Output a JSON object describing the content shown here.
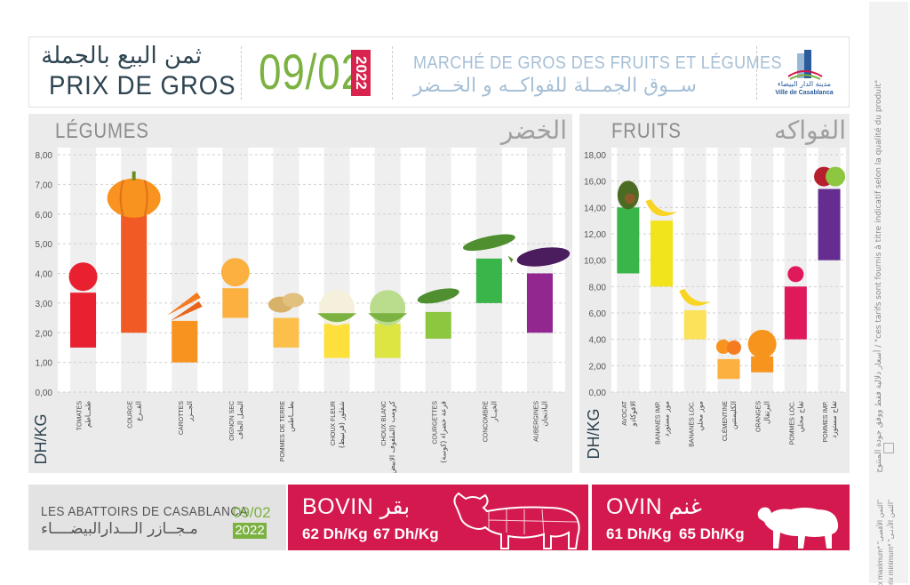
{
  "header": {
    "prix_ar": "ثمن البيع بالجملة",
    "prix_fr": "PRIX DE GROS",
    "date": "09/02",
    "year": "2022",
    "market_fr": "MARCHÉ DE GROS DES FRUITS ET LÉGUMES",
    "market_ar": "ســوق الجمــلة للفواكــه و الخــضر",
    "logo_ar": "مدينة الدار البيضاء",
    "logo_fr": "Ville de Casablanca"
  },
  "colors": {
    "accent_red": "#d4194e",
    "accent_green": "#7bb241",
    "title_blue": "#2e4451"
  },
  "chart_data": [
    {
      "type": "bar",
      "subtype": "floating-range",
      "title_fr": "LÉGUMES",
      "title_ar": "الخضر",
      "ylabel": "DH/KG",
      "ylim": [
        0,
        8
      ],
      "yticks": [
        "0,00",
        "1,00",
        "2,00",
        "3,00",
        "4,00",
        "5,00",
        "6,00",
        "7,00",
        "8,00"
      ],
      "categories": [
        {
          "fr": "TOMATES",
          "ar": "طمــاطم",
          "min": 1.5,
          "max": 3.35,
          "color": "#e8202f",
          "icon": "tomato-icon"
        },
        {
          "fr": "COURGE",
          "ar": "القــرع",
          "min": 2.0,
          "max": 6.0,
          "color": "#f15a24",
          "icon": "pumpkin-icon"
        },
        {
          "fr": "CAROTTES",
          "ar": "الجــزر",
          "min": 1.0,
          "max": 2.4,
          "color": "#f7931e",
          "icon": "carrot-icon"
        },
        {
          "fr": "OIGNON SEC",
          "ar": "البصل الجاف",
          "min": 2.5,
          "max": 3.5,
          "color": "#fbb040",
          "icon": "onion-icon"
        },
        {
          "fr": "POMMES DE TERRE",
          "ar": "بطـــاطس",
          "min": 1.5,
          "max": 2.5,
          "color": "#fcc04a",
          "icon": "potato-icon"
        },
        {
          "fr": "CHOUX FLEUR",
          "ar": "شفلور (قرنبيط)",
          "min": 1.15,
          "max": 2.3,
          "color": "#fde03c",
          "icon": "cauliflower-icon"
        },
        {
          "fr": "CHOUX BLANC",
          "ar": "كرومب (الملفوف الابيض)",
          "min": 1.15,
          "max": 2.3,
          "color": "#dde542",
          "icon": "cabbage-icon"
        },
        {
          "fr": "COURGETTES",
          "ar": "قرعة خضراء (كوسة)",
          "min": 1.8,
          "max": 2.7,
          "color": "#8dc63f",
          "icon": "zucchini-icon"
        },
        {
          "fr": "CONCOMBRE",
          "ar": "الخيــار",
          "min": 3.0,
          "max": 4.5,
          "color": "#39b54a",
          "icon": "cucumber-icon"
        },
        {
          "fr": "AUBERGINES",
          "ar": "الباذنجان",
          "min": 2.0,
          "max": 4.0,
          "color": "#92278f",
          "icon": "eggplant-icon"
        }
      ]
    },
    {
      "type": "bar",
      "subtype": "floating-range",
      "title_fr": "FRUITS",
      "title_ar": "الفواكه",
      "ylabel": "DH/KG",
      "ylim": [
        0,
        18
      ],
      "yticks": [
        "0,00",
        "2,00",
        "4,00",
        "6,00",
        "8,00",
        "10,00",
        "12,00",
        "14,00",
        "16,00",
        "18,00"
      ],
      "categories": [
        {
          "fr": "AVOCAT",
          "ar": "الافوكادو",
          "min": 9.0,
          "max": 14.0,
          "color": "#39b54a",
          "icon": "avocado-icon"
        },
        {
          "fr": "BANANES IMP.",
          "ar": "موز مستورد",
          "min": 8.0,
          "max": 13.0,
          "color": "#f2e41c",
          "icon": "banana-icon"
        },
        {
          "fr": "BANANES LOC.",
          "ar": "موز محلي",
          "min": 4.0,
          "max": 6.2,
          "color": "#fbe25a",
          "icon": "banana-icon"
        },
        {
          "fr": "CLÉMENTINE",
          "ar": "الكليمنتين",
          "min": 1.0,
          "max": 2.5,
          "color": "#fbb040",
          "icon": "clementine-icon"
        },
        {
          "fr": "ORANGES",
          "ar": "البرتقال",
          "min": 1.5,
          "max": 2.7,
          "color": "#f7941d",
          "icon": "orange-icon"
        },
        {
          "fr": "POMMES LOC.",
          "ar": "تفاح محلي",
          "min": 4.0,
          "max": 8.0,
          "color": "#e0195a",
          "icon": "apple-icon"
        },
        {
          "fr": "POMMES IMP.",
          "ar": "تفاح مستورد",
          "min": 10.0,
          "max": 15.4,
          "color": "#662d91",
          "icon": "apples-icon"
        }
      ]
    }
  ],
  "abattoirs": {
    "title_fr": "LES ABATTOIRS DE CASABLANCA",
    "title_ar": "مـجــازر الـــدارالبيضــــاء",
    "date": "09/02",
    "year": "2022",
    "bovin": {
      "fr": "BOVIN",
      "ar": "بقر",
      "price_min": "62 Dh/Kg",
      "price_max": "67 Dh/Kg",
      "icon": "cow-icon"
    },
    "ovin": {
      "fr": "OVIN",
      "ar": "غنم",
      "price_min": "61 Dh/Kg",
      "price_max": "65 Dh/Kg",
      "icon": "sheep-icon"
    }
  },
  "side_note": "أسعار دلالية فقط ووفق جودة المنتوج / \"ces tarifs sont fournis à titre indicatif selon la qualité du produit\"",
  "legend": {
    "max": "Prix maximum* \"الثمن الأقصى\"",
    "min": "Prix minimum* \"الثمن الأدنـى\""
  }
}
